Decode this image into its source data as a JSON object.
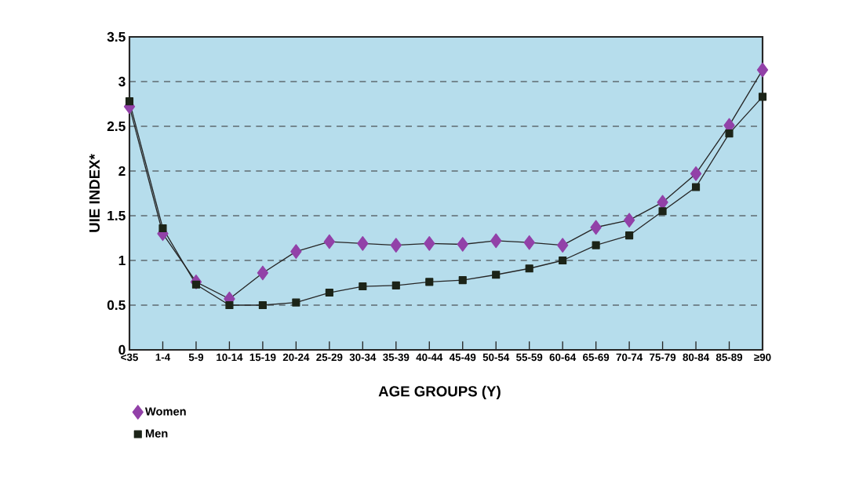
{
  "chart_data": {
    "type": "line",
    "xlabel": "AGE GROUPS (Y)",
    "ylabel": "UIE INDEX*",
    "categories": [
      "<35",
      "1-4",
      "5-9",
      "10-14",
      "15-19",
      "20-24",
      "25-29",
      "30-34",
      "35-39",
      "40-44",
      "45-49",
      "50-54",
      "55-59",
      "60-64",
      "65-69",
      "70-74",
      "75-79",
      "80-84",
      "85-89",
      "≥90"
    ],
    "series": [
      {
        "name": "Women",
        "color": "#9241a8",
        "marker": "diamond",
        "values": [
          2.72,
          1.3,
          0.76,
          0.57,
          0.86,
          1.1,
          1.21,
          1.19,
          1.17,
          1.19,
          1.18,
          1.22,
          1.2,
          1.17,
          1.37,
          1.45,
          1.65,
          1.97,
          2.51,
          3.13
        ]
      },
      {
        "name": "Men",
        "color": "#1c2418",
        "marker": "square",
        "values": [
          2.78,
          1.36,
          0.73,
          0.5,
          0.5,
          0.53,
          0.64,
          0.71,
          0.72,
          0.76,
          0.78,
          0.84,
          0.91,
          1.0,
          1.17,
          1.28,
          1.55,
          1.82,
          2.42,
          2.83
        ]
      }
    ],
    "ylim": [
      0,
      3.5
    ],
    "yticks": [
      0,
      0.5,
      1,
      1.5,
      2,
      2.5,
      3,
      3.5
    ],
    "grid": "y",
    "line_style": "solid",
    "legend": "bottom left"
  }
}
